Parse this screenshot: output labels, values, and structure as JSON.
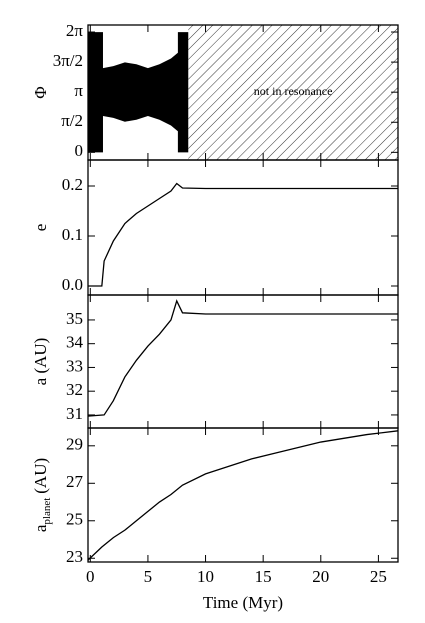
{
  "chart_data": [
    {
      "type": "band",
      "ylabel": "Φ",
      "x": [
        -0.2,
        1.1,
        1.1,
        2,
        3,
        4,
        5,
        6,
        7,
        7.6,
        7.6,
        8.5
      ],
      "upper": [
        6.28,
        6.28,
        4.4,
        4.5,
        4.7,
        4.6,
        4.4,
        4.6,
        4.9,
        5.2,
        6.28,
        6.28
      ],
      "lower": [
        0,
        0,
        1.9,
        1.8,
        1.6,
        1.7,
        1.9,
        1.7,
        1.4,
        1.1,
        0,
        0
      ],
      "color": "#000000",
      "hatch_from": 8.5,
      "annotation": "not in resonance",
      "xlim": [
        -0.2,
        26.7
      ],
      "xticks": [
        0,
        5,
        10,
        15,
        20,
        25
      ],
      "ylim": [
        -0.4,
        6.65
      ],
      "yticks": [
        0,
        {
          "value": 1.5708,
          "label": "π/2"
        },
        {
          "value": 3.1416,
          "label": "π"
        },
        {
          "value": 4.7124,
          "label": "3π/2"
        },
        {
          "value": 6.2832,
          "label": "2π"
        }
      ]
    },
    {
      "type": "line",
      "ylabel": "e",
      "x": [
        -0.2,
        1,
        1.2,
        2,
        3,
        4,
        5,
        6,
        7,
        7.5,
        8,
        10,
        15,
        20,
        26.7
      ],
      "values": [
        0,
        0,
        0.05,
        0.09,
        0.125,
        0.145,
        0.16,
        0.175,
        0.19,
        0.205,
        0.196,
        0.195,
        0.195,
        0.195,
        0.195
      ],
      "color": "#000000",
      "xlim": [
        -0.2,
        26.7
      ],
      "xticks": [
        0,
        5,
        10,
        15,
        20,
        25
      ],
      "ylim": [
        -0.018,
        0.252
      ],
      "yticks": [
        {
          "value": 0,
          "label": "0.0"
        },
        0.1,
        0.2
      ]
    },
    {
      "type": "line",
      "ylabel": "a (AU)",
      "x": [
        -0.2,
        1.2,
        2,
        3,
        4,
        5,
        6,
        7,
        7.5,
        8,
        10,
        26.7
      ],
      "values": [
        30.95,
        31.0,
        31.6,
        32.6,
        33.3,
        33.9,
        34.4,
        35.0,
        35.8,
        35.3,
        35.25,
        35.25
      ],
      "color": "#000000",
      "xlim": [
        -0.2,
        26.7
      ],
      "xticks": [
        0,
        5,
        10,
        15,
        20,
        25
      ],
      "ylim": [
        30.45,
        36.05
      ],
      "yticks": [
        31,
        32,
        33,
        34,
        35
      ]
    },
    {
      "type": "line",
      "ylabel": "a",
      "ylabel_sub": "planet",
      "ylabel_unit": "(AU)",
      "xlabel": "Time (Myr)",
      "x": [
        -0.2,
        1,
        2,
        3,
        4,
        5,
        6,
        7,
        8,
        10,
        12,
        14,
        16,
        18,
        20,
        22,
        24,
        26.7
      ],
      "values": [
        22.9,
        23.6,
        24.1,
        24.5,
        25.0,
        25.5,
        26.0,
        26.4,
        26.9,
        27.5,
        27.9,
        28.3,
        28.6,
        28.9,
        29.2,
        29.4,
        29.6,
        29.8
      ],
      "color": "#000000",
      "xlim": [
        -0.2,
        26.7
      ],
      "xticks": [
        0,
        5,
        10,
        15,
        20,
        25
      ],
      "ylim": [
        22.8,
        29.95
      ],
      "yticks": [
        23,
        25,
        27,
        29
      ]
    }
  ]
}
